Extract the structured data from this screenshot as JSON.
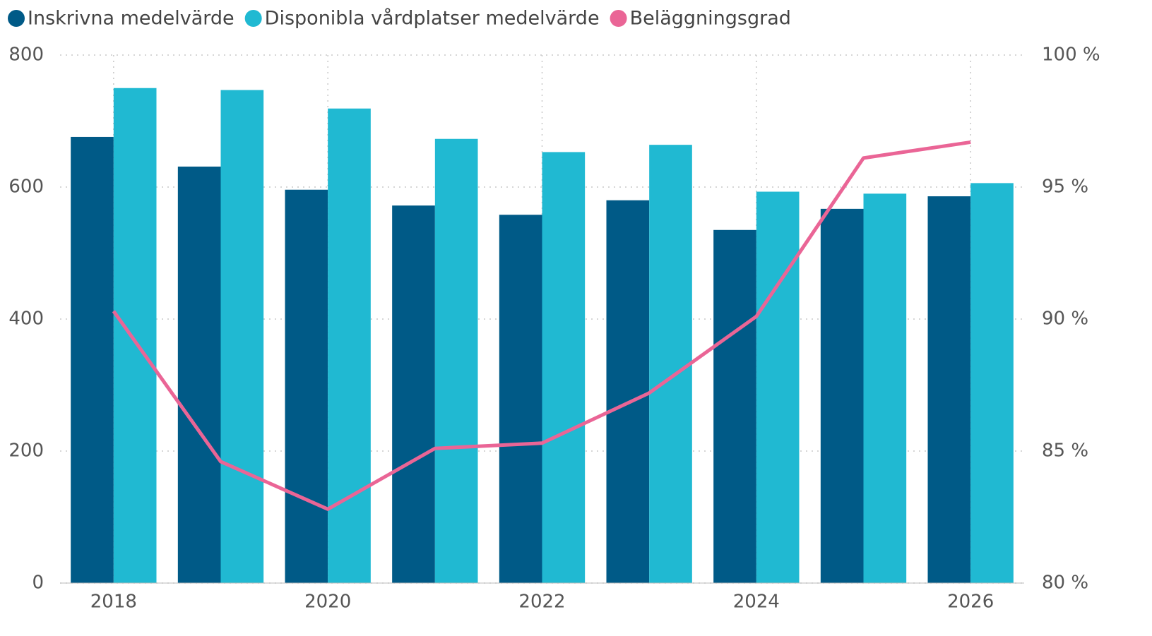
{
  "chart_data": {
    "type": "bar",
    "categories": [
      "2018",
      null,
      "2020",
      null,
      "2022",
      null,
      "2024",
      null,
      "2026"
    ],
    "series": [
      {
        "name": "Inskrivna medelvärde",
        "color": "#005a87",
        "type": "bar",
        "values": [
          676,
          631,
          596,
          572,
          558,
          580,
          535,
          567,
          586
        ]
      },
      {
        "name": "Disponibla vårdplatser medelvärde",
        "color": "#20b9d2",
        "type": "bar",
        "values": [
          750,
          747,
          719,
          673,
          653,
          664,
          593,
          590,
          606
        ]
      },
      {
        "name": "Beläggningsgrad",
        "color": "#ea6596",
        "type": "line",
        "axis": "y2",
        "values": [
          90.3,
          84.6,
          82.8,
          85.1,
          85.3,
          87.2,
          90.1,
          96.1,
          96.7
        ]
      }
    ],
    "ylim": [
      0,
      800
    ],
    "yticks": [
      0,
      200,
      400,
      600,
      800
    ],
    "y2lim": [
      80,
      100
    ],
    "y2ticks": [
      {
        "value": 80,
        "label": "80 %"
      },
      {
        "value": 85,
        "label": "85 %"
      },
      {
        "value": 90,
        "label": "90 %"
      },
      {
        "value": 95,
        "label": "95 %"
      },
      {
        "value": 100,
        "label": "100 %"
      }
    ],
    "grid": true,
    "legend": "top-left"
  }
}
